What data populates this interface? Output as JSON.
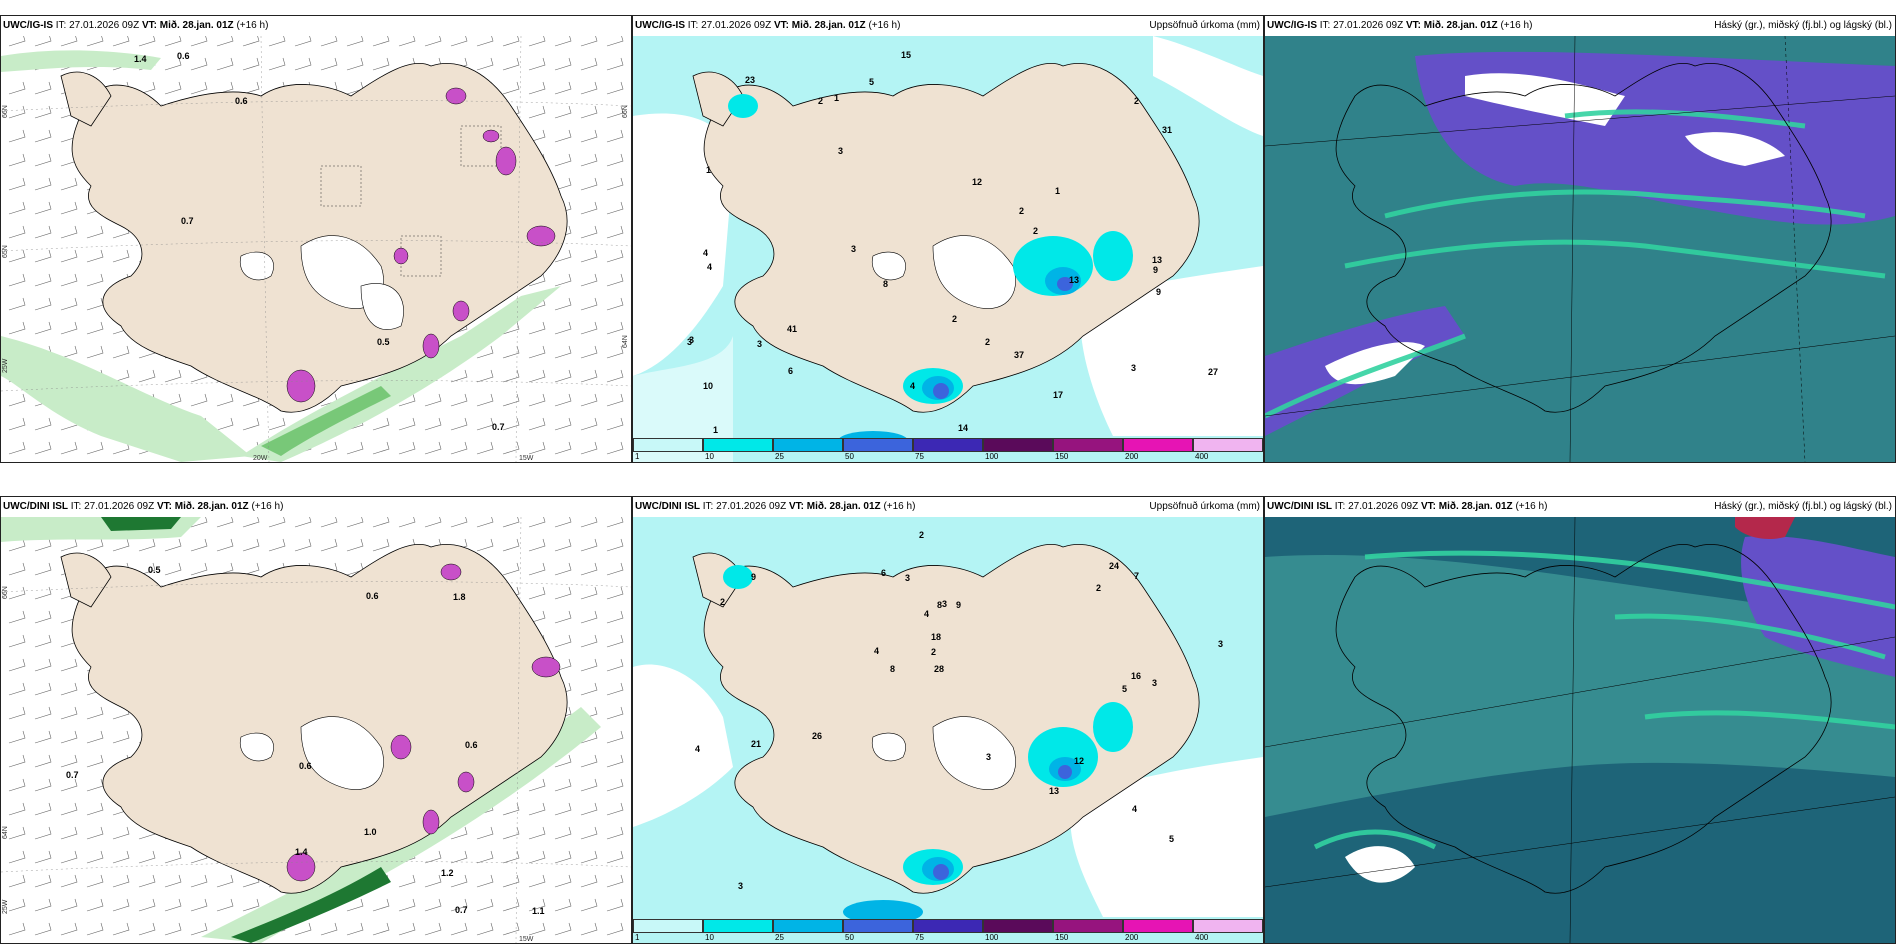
{
  "rows": [
    {
      "model": "UWC/IG-IS",
      "issue_time": "IT: 27.01.2026 09Z",
      "valid_label": "VT:",
      "valid_time": "Mið. 28.jan. 01Z",
      "lead": "(+16 h)"
    },
    {
      "model": "UWC/DINI ISL",
      "issue_time": "IT: 27.01.2026 09Z",
      "valid_label": "VT:",
      "valid_time": "Mið. 28.jan. 01Z",
      "lead": "(+16 h)"
    }
  ],
  "panel_titles": {
    "precip": "Uppsöfnuð úrkoma (mm)",
    "cloud": "Háský (gr.), miðský (fj.bl.) og lágský (bl.)"
  },
  "axis_labels": {
    "lat_66": "66N",
    "lat_64": "64N",
    "lat_65": "65N",
    "lon_25": "25W",
    "lon_20": "20W",
    "lon_15": "15W",
    "right_66": "66N",
    "right_64": "64N"
  },
  "colorbar": {
    "ticks": [
      "1",
      "10",
      "25",
      "50",
      "75",
      "100",
      "150",
      "200",
      "400"
    ],
    "colors": [
      "#c8f8f8",
      "#00e8e8",
      "#00b4e6",
      "#3c64dc",
      "#3c28b4",
      "#5a0a5a",
      "#96147e",
      "#e614b4",
      "#f0b4f0"
    ]
  },
  "colors": {
    "land": "#efe2d2",
    "sea": "#ffffff",
    "light_precip": "#b4f4f4",
    "green_light": "#c8ecc8",
    "green_mid": "#78c878",
    "green_dark": "#1e7832",
    "magenta": "#c850c8",
    "cloud_dark": "#1e6478",
    "cloud_teal": "#3c9696",
    "cloud_green": "#32d2a0",
    "cloud_purple": "#6450c8"
  },
  "precip_labels_top": [
    "3",
    "4",
    "1",
    "1",
    "14",
    "15",
    "6",
    "3",
    "1",
    "4",
    "3",
    "2",
    "2",
    "13",
    "8",
    "10",
    "12",
    "17",
    "31",
    "23",
    "9",
    "5",
    "2",
    "2",
    "3",
    "27",
    "41",
    "37",
    "13",
    "3",
    "1",
    "9",
    "4",
    "2",
    "3",
    "2"
  ],
  "precip_labels_bottom": [
    "4",
    "6",
    "3",
    "3",
    "3",
    "5",
    "4",
    "2",
    "9",
    "8",
    "18",
    "13",
    "16",
    "26",
    "12",
    "7",
    "9",
    "3",
    "4",
    "28",
    "24",
    "21",
    "3",
    "2",
    "3",
    "2",
    "4",
    "2",
    "8",
    "5"
  ],
  "contour_labels_top": [
    "0.5",
    "1.4",
    "0.7",
    "0.6",
    "0.6",
    "0.7"
  ],
  "contour_labels_bottom": [
    "0.5",
    "1.1",
    "0.6",
    "1.8",
    "1.4",
    "0.7",
    "1.2",
    "1.0",
    "0.7",
    "0.6",
    "0.6"
  ]
}
